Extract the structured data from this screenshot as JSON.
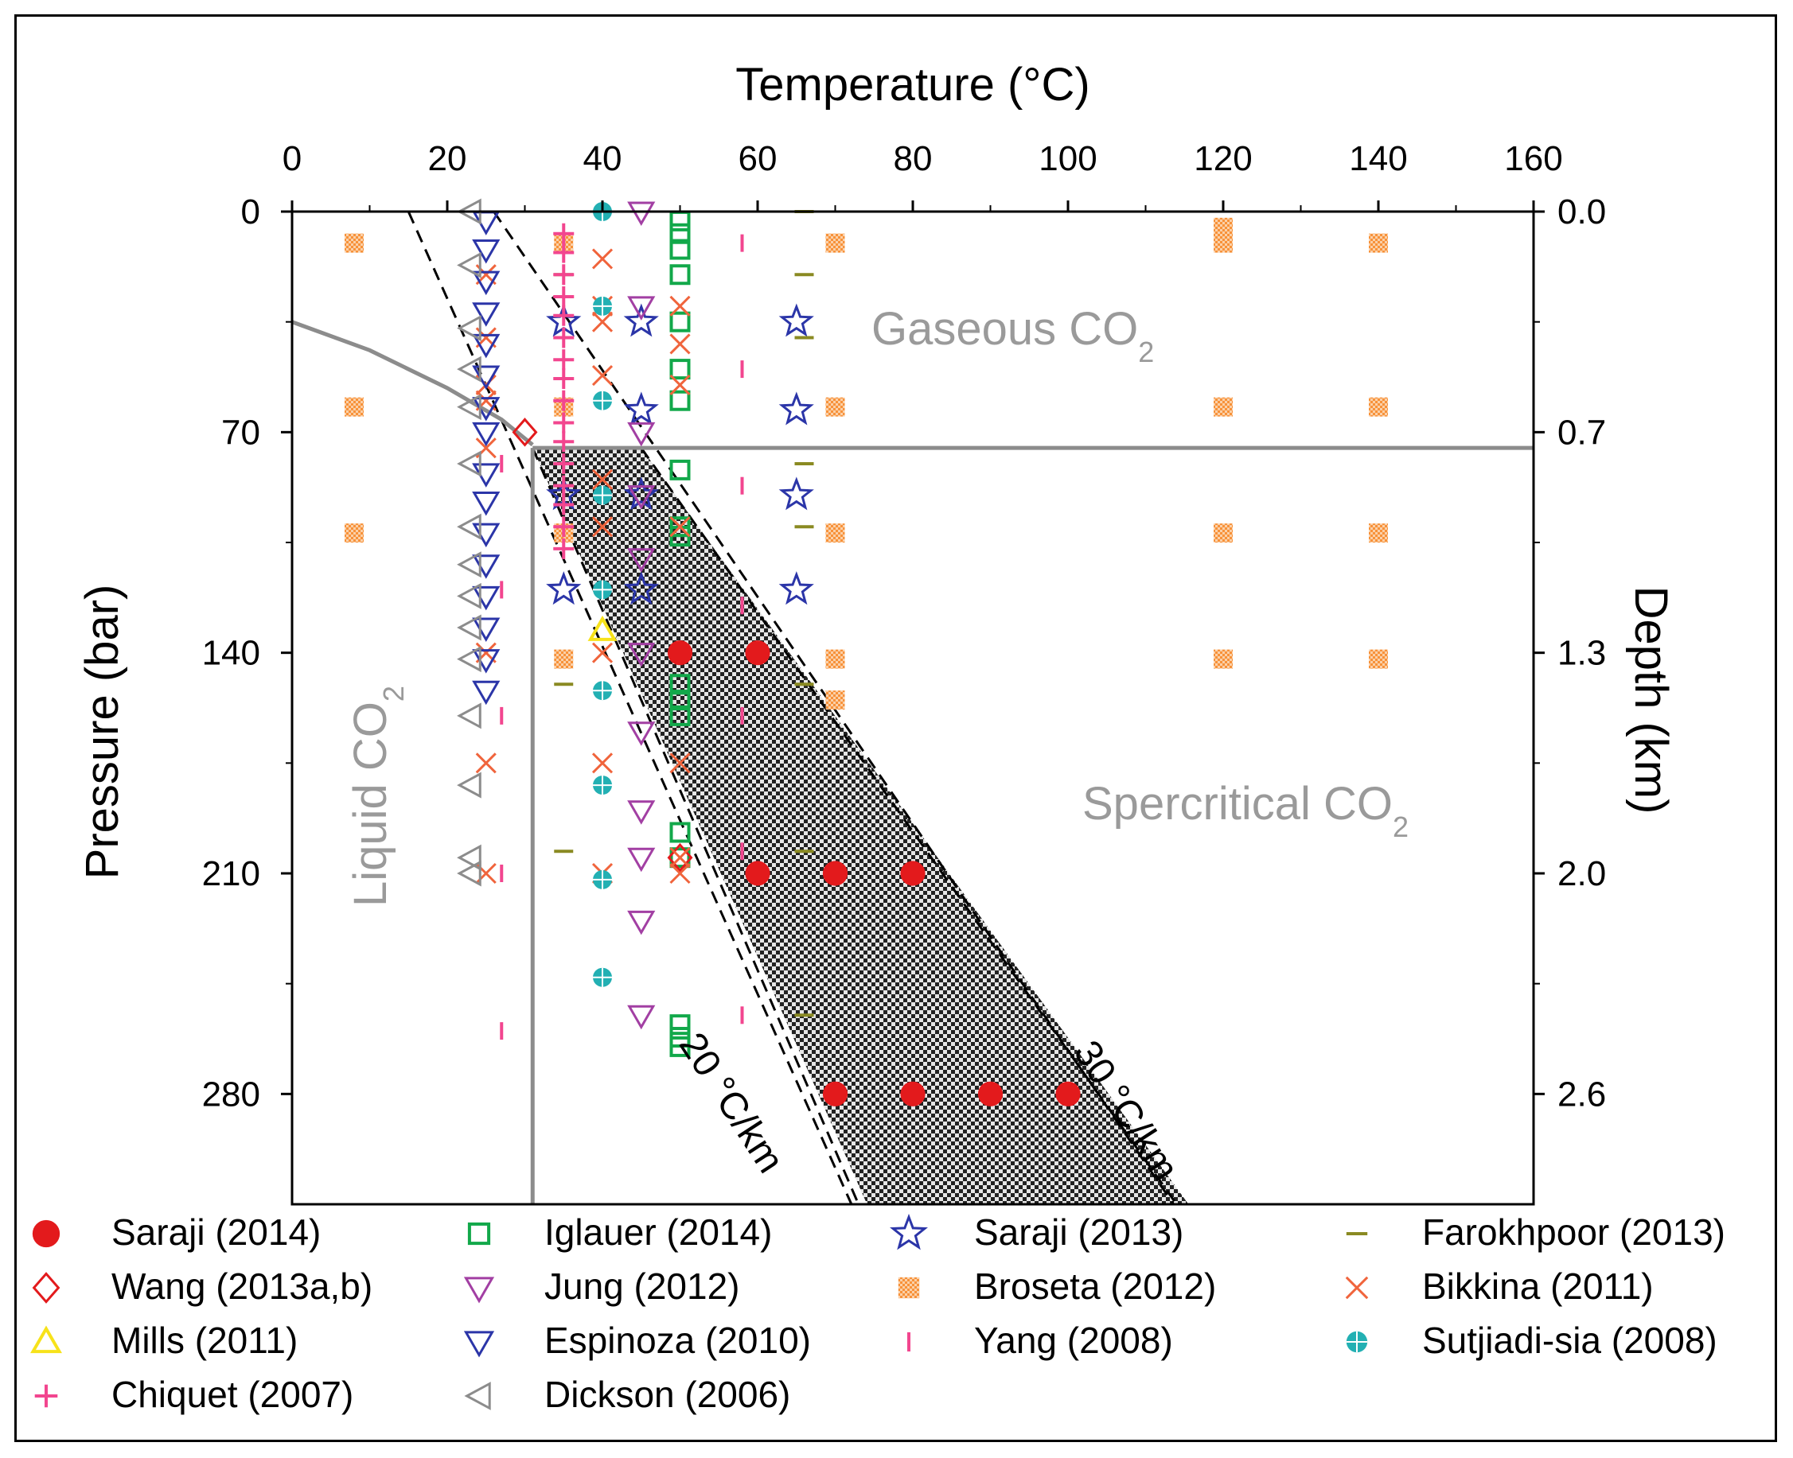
{
  "chart_data": {
    "type": "scatter",
    "title": "",
    "xlabel": "Temperature (°C)",
    "ylabel": "Pressure (bar)",
    "y2label": "Depth (km)",
    "xlim": [
      0,
      160
    ],
    "ylim": [
      0,
      315
    ],
    "x_ticks": [
      "0",
      "20",
      "40",
      "60",
      "80",
      "100",
      "120",
      "140",
      "160"
    ],
    "y_ticks": [
      "0",
      "70",
      "140",
      "210",
      "280"
    ],
    "y2_ticks": [
      "0.0",
      "0.7",
      "1.3",
      "2.0",
      "2.6"
    ],
    "regions": {
      "gas": {
        "text": "Gaseous CO",
        "sub": "2"
      },
      "liquid": {
        "text": "Liquid CO",
        "sub": "2"
      },
      "supercritical": {
        "text": "Spercritical CO",
        "sub": "2"
      }
    },
    "gradient_labels": {
      "g20": "20 °C/km",
      "g30": "30 °C/km"
    },
    "legend_position": "bottom",
    "series": [
      {
        "name": "Saraji (2014)",
        "marker": "dot",
        "color": "#e31a1c",
        "x": [
          50,
          60,
          60,
          70,
          80,
          70,
          80,
          90,
          100
        ],
        "y": [
          140,
          140,
          210,
          210,
          210,
          280,
          280,
          280,
          280
        ]
      },
      {
        "name": "Iglauer (2014)",
        "marker": "square",
        "color": "#12a84a",
        "x": [
          50,
          50,
          50,
          50,
          50,
          50,
          50,
          50,
          50,
          50,
          50,
          50,
          50,
          50,
          50,
          50,
          50,
          50
        ],
        "y": [
          3,
          7,
          12,
          20,
          35,
          50,
          60,
          82,
          100,
          103,
          150,
          155,
          160,
          197,
          205,
          258,
          262,
          265
        ]
      },
      {
        "name": "Saraji (2013)",
        "marker": "star",
        "color": "#2b35a8",
        "x": [
          35,
          45,
          65,
          45,
          65,
          35,
          45,
          65,
          35,
          45,
          65
        ],
        "y": [
          35,
          35,
          35,
          63,
          63,
          90,
          90,
          90,
          120,
          120,
          120
        ]
      },
      {
        "name": "Farokhpoor (2013)",
        "marker": "dash",
        "color": "#8a8a22",
        "x": [
          35,
          35,
          35,
          35,
          35,
          35,
          66,
          66,
          66,
          66,
          66,
          66,
          66,
          66
        ],
        "y": [
          20,
          40,
          60,
          100,
          150,
          203,
          0,
          20,
          40,
          80,
          100,
          150,
          203,
          255
        ]
      },
      {
        "name": "Wang (2013a,b)",
        "marker": "diamond",
        "color": "#e31a1c",
        "x": [
          30,
          50
        ],
        "y": [
          70,
          205
        ]
      },
      {
        "name": "Jung (2012)",
        "marker": "tri-down",
        "color": "#a23fa3",
        "x": [
          45,
          45,
          45,
          45,
          45,
          45,
          45,
          45,
          45,
          45,
          45
        ],
        "y": [
          0,
          30,
          70,
          90,
          110,
          140,
          165,
          190,
          205,
          225,
          255
        ]
      },
      {
        "name": "Broseta (2012)",
        "marker": "hatchsq",
        "color": "#f7923a",
        "x": [
          8,
          35,
          70,
          120,
          140,
          8,
          35,
          70,
          120,
          140,
          8,
          35,
          70,
          120,
          140,
          35,
          70,
          120,
          140,
          70,
          120
        ],
        "y": [
          10,
          10,
          10,
          10,
          10,
          62,
          62,
          62,
          62,
          62,
          102,
          102,
          102,
          102,
          102,
          142,
          142,
          142,
          142,
          155,
          5
        ]
      },
      {
        "name": "Bikkina (2011)",
        "marker": "x",
        "color": "#f0643c",
        "x": [
          25,
          25,
          25,
          25,
          25,
          40,
          40,
          40,
          40,
          40,
          40,
          40,
          40,
          40,
          50,
          50,
          50,
          50,
          50,
          50,
          50,
          25,
          25,
          25
        ],
        "y": [
          20,
          40,
          55,
          60,
          75,
          15,
          35,
          52,
          85,
          100,
          140,
          175,
          210,
          30,
          30,
          42,
          55,
          100,
          175,
          205,
          210,
          175,
          210,
          140
        ]
      },
      {
        "name": "Mills (2011)",
        "marker": "tri-up",
        "color": "#f7e21a",
        "x": [
          40
        ],
        "y": [
          133
        ]
      },
      {
        "name": "Espinoza (2010)",
        "marker": "tri-down",
        "color": "#2b35a8",
        "x": [
          25,
          25,
          25,
          25,
          25,
          25,
          25,
          25,
          25,
          25,
          25,
          25,
          25,
          25,
          25,
          25
        ],
        "y": [
          3,
          12,
          22,
          32,
          42,
          52,
          62,
          70,
          83,
          92,
          102,
          112,
          122,
          132,
          142,
          152
        ]
      },
      {
        "name": "Yang (2008)",
        "marker": "vbar",
        "color": "#f2468f",
        "x": [
          58,
          58,
          58,
          58,
          58,
          58,
          58,
          27,
          27,
          27,
          27,
          27
        ],
        "y": [
          10,
          50,
          87,
          125,
          160,
          203,
          255,
          80,
          120,
          160,
          210,
          260
        ]
      },
      {
        "name": "Sutjiadi-sia (2008)",
        "marker": "circleplus",
        "color": "#23b0b3",
        "x": [
          40,
          40,
          40,
          40,
          40,
          40,
          40,
          40,
          40
        ],
        "y": [
          0,
          30,
          60,
          90,
          120,
          152,
          182,
          212,
          243
        ]
      },
      {
        "name": "Chiquet (2007)",
        "marker": "plus",
        "color": "#f2468f",
        "x": [
          35,
          35,
          35,
          35,
          35,
          35,
          35,
          35,
          35,
          35,
          35,
          35,
          35,
          35,
          35,
          35
        ],
        "y": [
          7,
          13,
          20,
          27,
          33,
          40,
          47,
          53,
          60,
          67,
          73,
          80,
          87,
          93,
          100,
          107
        ]
      },
      {
        "name": "Dickson (2006)",
        "marker": "tri-left",
        "color": "#8c8c8c",
        "x": [
          23,
          23,
          23,
          23,
          23,
          23,
          23,
          23,
          23,
          23,
          23,
          23,
          23,
          23,
          23
        ],
        "y": [
          0,
          17,
          37,
          50,
          62,
          80,
          100,
          112,
          122,
          132,
          142,
          160,
          182,
          205,
          210
        ]
      }
    ]
  }
}
